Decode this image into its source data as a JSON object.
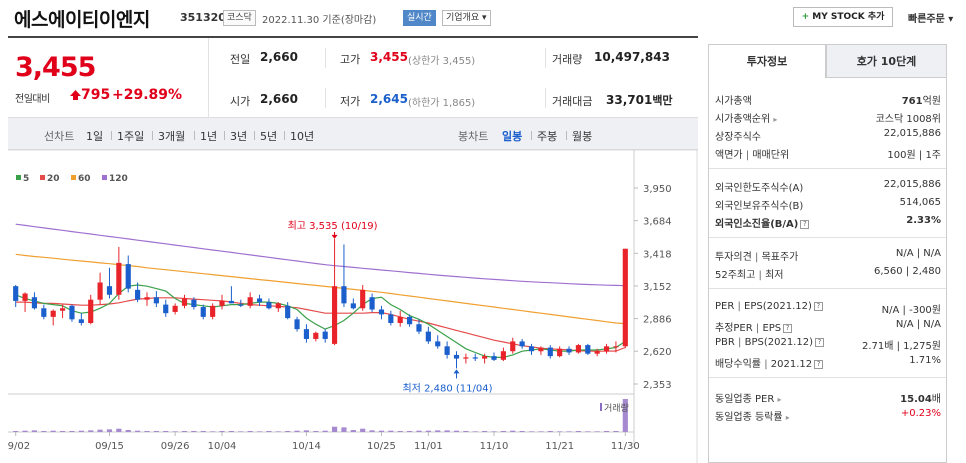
{
  "header": {
    "company": "에스에이티이엔지",
    "code": "351320",
    "market": "코스닥",
    "date": "2022.11.30 기준(장마감)",
    "realtime": "실시간",
    "overview": "기업개요 ▾",
    "mystock": "MY STOCK 추가",
    "mystock_plus": "+",
    "quick_order": "빠른주문 ▾"
  },
  "summary": {
    "price": "3,455",
    "prev_label": "전일대비",
    "change": "795",
    "change_pct": "+29.89%",
    "prev_close_label": "전일",
    "prev_close": "2,660",
    "high_label": "고가",
    "high": "3,455",
    "upper_limit": "(상한가 3,455)",
    "volume_label": "거래량",
    "volume": "10,497,843",
    "open_label": "시가",
    "open": "2,660",
    "low_label": "저가",
    "low": "2,645",
    "lower_limit": "(하한가 1,865)",
    "amount_label": "거래대금",
    "amount": "33,701",
    "amount_unit": "백만"
  },
  "periods": {
    "line_label": "선차트",
    "line_items": [
      "1일",
      "1주일",
      "3개월",
      "1년",
      "3년",
      "5년",
      "10년"
    ],
    "candle_label": "봉차트",
    "candle_items": [
      "일봉",
      "주봉",
      "월봉"
    ],
    "active_candle": "일봉"
  },
  "chart_data": {
    "type": "candlestick",
    "legend": [
      {
        "name": "5",
        "color": "#3aa04a"
      },
      {
        "name": "20",
        "color": "#e54b4b"
      },
      {
        "name": "60",
        "color": "#f0a030"
      },
      {
        "name": "120",
        "color": "#a070d0"
      }
    ],
    "y_ticks": [
      "3,950",
      "3,684",
      "3,418",
      "3,152",
      "2,886",
      "2,620",
      "2,353"
    ],
    "ylim": [
      2353,
      3950
    ],
    "x_ticks": [
      {
        "label": "09/02",
        "index": 0
      },
      {
        "label": "09/15",
        "index": 10
      },
      {
        "label": "09/26",
        "index": 17
      },
      {
        "label": "10/04",
        "index": 22
      },
      {
        "label": "10/14",
        "index": 31
      },
      {
        "label": "10/25",
        "index": 39
      },
      {
        "label": "11/01",
        "index": 44
      },
      {
        "label": "11/10",
        "index": 51
      },
      {
        "label": "11/21",
        "index": 58
      },
      {
        "label": "11/30",
        "index": 65
      }
    ],
    "high_annotation": "최고 3,535 (10/19)",
    "high_index": 34,
    "high_value": 3535,
    "low_annotation": "최저 2,480 (11/04)",
    "low_index": 47,
    "low_value": 2480,
    "volume_label": "거래량",
    "ohlc": [
      [
        3150,
        3160,
        2980,
        3030
      ],
      [
        3030,
        3100,
        2940,
        3090
      ],
      [
        3060,
        3100,
        2960,
        2970
      ],
      [
        2970,
        3000,
        2880,
        2900
      ],
      [
        2900,
        2960,
        2830,
        2950
      ],
      [
        2950,
        3000,
        2890,
        2970
      ],
      [
        2990,
        3000,
        2860,
        2880
      ],
      [
        2880,
        2930,
        2830,
        2850
      ],
      [
        2850,
        3080,
        2840,
        3040
      ],
      [
        3040,
        3260,
        3000,
        3180
      ],
      [
        3150,
        3300,
        3050,
        3080
      ],
      [
        3080,
        3470,
        3040,
        3340
      ],
      [
        3330,
        3400,
        3100,
        3130
      ],
      [
        3120,
        3180,
        3020,
        3040
      ],
      [
        3040,
        3100,
        2990,
        3060
      ],
      [
        3060,
        3110,
        2980,
        3010
      ],
      [
        3000,
        3040,
        2900,
        2930
      ],
      [
        2940,
        3010,
        2920,
        2990
      ],
      [
        2990,
        3080,
        2970,
        3050
      ],
      [
        3040,
        3060,
        2960,
        2980
      ],
      [
        2980,
        3000,
        2880,
        2900
      ],
      [
        2900,
        3010,
        2880,
        2990
      ],
      [
        2990,
        3080,
        2960,
        3030
      ],
      [
        3030,
        3150,
        3010,
        3010
      ],
      [
        3000,
        3040,
        2980,
        2990
      ],
      [
        2990,
        3100,
        2970,
        3060
      ],
      [
        3050,
        3080,
        2990,
        3020
      ],
      [
        3020,
        3050,
        2960,
        2970
      ],
      [
        2970,
        3020,
        2940,
        3010
      ],
      [
        2990,
        3020,
        2880,
        2890
      ],
      [
        2880,
        2900,
        2780,
        2800
      ],
      [
        2800,
        2840,
        2690,
        2720
      ],
      [
        2720,
        2780,
        2700,
        2770
      ],
      [
        2780,
        2800,
        2690,
        2720
      ],
      [
        2680,
        3535,
        2670,
        3150
      ],
      [
        3150,
        3490,
        2980,
        3010
      ],
      [
        3010,
        3050,
        2960,
        2970
      ],
      [
        2970,
        3160,
        2950,
        3120
      ],
      [
        3060,
        3090,
        2940,
        2960
      ],
      [
        2960,
        2990,
        2880,
        2920
      ],
      [
        2920,
        2950,
        2830,
        2850
      ],
      [
        2850,
        2950,
        2820,
        2900
      ],
      [
        2900,
        2920,
        2820,
        2840
      ],
      [
        2840,
        2880,
        2760,
        2780
      ],
      [
        2780,
        2820,
        2680,
        2700
      ],
      [
        2700,
        2750,
        2640,
        2660
      ],
      [
        2660,
        2700,
        2560,
        2590
      ],
      [
        2590,
        2620,
        2480,
        2560
      ],
      [
        2560,
        2600,
        2520,
        2570
      ],
      [
        2570,
        2600,
        2540,
        2560
      ],
      [
        2560,
        2600,
        2520,
        2580
      ],
      [
        2580,
        2610,
        2540,
        2550
      ],
      [
        2550,
        2650,
        2540,
        2620
      ],
      [
        2620,
        2730,
        2600,
        2700
      ],
      [
        2700,
        2720,
        2640,
        2660
      ],
      [
        2660,
        2680,
        2590,
        2620
      ],
      [
        2620,
        2660,
        2590,
        2650
      ],
      [
        2650,
        2670,
        2560,
        2580
      ],
      [
        2580,
        2660,
        2570,
        2640
      ],
      [
        2640,
        2660,
        2590,
        2610
      ],
      [
        2610,
        2680,
        2600,
        2670
      ],
      [
        2670,
        2680,
        2590,
        2600
      ],
      [
        2600,
        2640,
        2580,
        2620
      ],
      [
        2620,
        2680,
        2600,
        2660
      ],
      [
        2660,
        2700,
        2610,
        2660
      ],
      [
        2660,
        3455,
        2645,
        3455
      ]
    ],
    "ma5": [
      3080,
      3050,
      3030,
      3010,
      3000,
      2990,
      2950,
      2930,
      2940,
      2970,
      3010,
      3090,
      3150,
      3160,
      3150,
      3130,
      3110,
      3050,
      3010,
      3000,
      2990,
      2980,
      2990,
      3000,
      3000,
      3010,
      3020,
      3020,
      3010,
      2990,
      2960,
      2890,
      2840,
      2800,
      2830,
      2870,
      2930,
      3000,
      3050,
      3060,
      3000,
      2960,
      2910,
      2880,
      2840,
      2790,
      2740,
      2690,
      2640,
      2610,
      2580,
      2570,
      2570,
      2590,
      2620,
      2630,
      2640,
      2630,
      2620,
      2620,
      2630,
      2630,
      2630,
      2640,
      2650,
      2700
    ],
    "ma20": [
      3020,
      3020,
      3015,
      3010,
      3010,
      3005,
      3000,
      2995,
      2995,
      3000,
      3005,
      3015,
      3030,
      3045,
      3050,
      3055,
      3055,
      3055,
      3050,
      3045,
      3040,
      3035,
      3030,
      3020,
      3010,
      3000,
      2995,
      2990,
      2985,
      2980,
      2975,
      2960,
      2945,
      2930,
      2930,
      2930,
      2930,
      2930,
      2935,
      2935,
      2920,
      2900,
      2880,
      2865,
      2850,
      2830,
      2810,
      2790,
      2770,
      2750,
      2730,
      2710,
      2695,
      2680,
      2665,
      2655,
      2645,
      2640,
      2635,
      2630,
      2625,
      2620,
      2620,
      2620,
      2622,
      2650
    ],
    "ma60": [
      3410,
      3400,
      3392,
      3385,
      3378,
      3370,
      3362,
      3355,
      3348,
      3340,
      3333,
      3326,
      3318,
      3310,
      3300,
      3292,
      3284,
      3276,
      3268,
      3260,
      3252,
      3244,
      3236,
      3228,
      3220,
      3212,
      3204,
      3196,
      3188,
      3180,
      3172,
      3164,
      3156,
      3148,
      3140,
      3132,
      3124,
      3116,
      3108,
      3100,
      3090,
      3080,
      3070,
      3060,
      3050,
      3040,
      3030,
      3020,
      3010,
      3000,
      2990,
      2980,
      2970,
      2960,
      2950,
      2940,
      2930,
      2920,
      2910,
      2900,
      2890,
      2880,
      2870,
      2860,
      2850,
      2845
    ],
    "ma120": [
      3655,
      3645,
      3635,
      3625,
      3615,
      3605,
      3595,
      3585,
      3575,
      3565,
      3555,
      3545,
      3535,
      3525,
      3515,
      3505,
      3495,
      3485,
      3475,
      3465,
      3455,
      3445,
      3435,
      3425,
      3415,
      3405,
      3395,
      3385,
      3375,
      3365,
      3355,
      3345,
      3335,
      3325,
      3317,
      3310,
      3303,
      3296,
      3289,
      3282,
      3275,
      3268,
      3261,
      3254,
      3247,
      3240,
      3234,
      3228,
      3222,
      3216,
      3210,
      3205,
      3200,
      3195,
      3190,
      3186,
      3182,
      3178,
      3174,
      3170,
      3167,
      3164,
      3161,
      3158,
      3156,
      3154
    ],
    "volume": [
      3,
      4,
      5,
      3,
      4,
      3,
      3,
      4,
      5,
      7,
      8,
      10,
      6,
      4,
      3,
      3,
      3,
      2,
      3,
      3,
      3,
      2,
      3,
      3,
      2,
      3,
      2,
      3,
      2,
      3,
      4,
      5,
      3,
      4,
      16,
      14,
      6,
      10,
      5,
      4,
      4,
      3,
      3,
      4,
      4,
      5,
      5,
      4,
      3,
      2,
      3,
      2,
      3,
      4,
      3,
      2,
      2,
      3,
      2,
      2,
      3,
      2,
      2,
      3,
      3,
      100
    ]
  },
  "right": {
    "tab_invest": "투자정보",
    "tab_hoga": "호가 10단계",
    "market_cap_label": "시가총액",
    "market_cap": "761",
    "market_cap_unit": "억원",
    "cap_rank_label": "시가총액순위",
    "cap_rank": "코스닥 1008위",
    "shares_label": "상장주식수",
    "shares": "22,015,886",
    "face_label": "액면가",
    "face_sep": "|",
    "unit_label": "매매단위",
    "face_value": "100원",
    "unit_value": "1주",
    "foreign_limit_label": "외국인한도주식수(A)",
    "foreign_limit": "22,015,886",
    "foreign_hold_label": "외국인보유주식수(B)",
    "foreign_hold": "514,065",
    "foreign_ratio_label": "외국인소진율(B/A)",
    "foreign_ratio": "2.33%",
    "opinion_label": "투자의견",
    "target_label": "목표주가",
    "opinion": "N/A",
    "target": "N/A",
    "week52_label1": "52주최고",
    "week52_label2": "최저",
    "week52_high": "6,560",
    "week52_low": "2,480",
    "per_label": "PER",
    "eps_label": "EPS(2021.12)",
    "per": "N/A",
    "eps": "-300원",
    "est_per_label": "추정PER",
    "est_eps_label": "EPS",
    "est_per": "N/A",
    "est_eps": "N/A",
    "pbr_label": "PBR",
    "bps_label": "BPS(2021.12)",
    "pbr": "2.71배",
    "bps": "1,275원",
    "div_label": "배당수익률",
    "div_date": "2021.12",
    "div": "1.71%",
    "ind_per_label": "동일업종 PER",
    "ind_per": "15.04",
    "ind_per_unit": "배",
    "ind_rate_label": "동일업종 등락률",
    "ind_rate": "+0.23%",
    "question_glyph": "?",
    "bar": "|"
  }
}
